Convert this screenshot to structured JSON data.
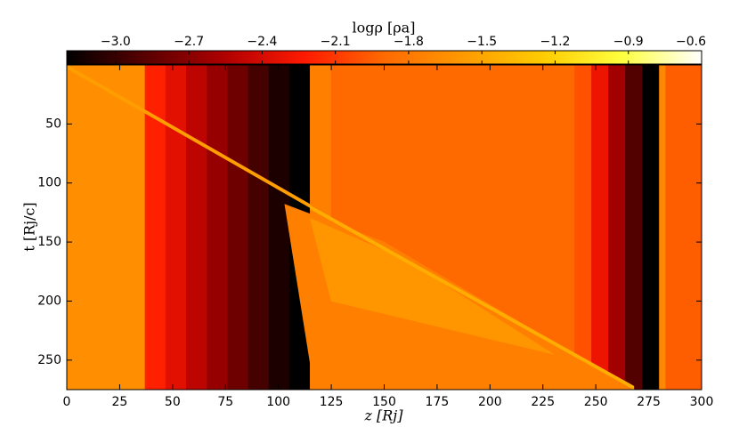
{
  "chart_data": {
    "type": "heatmap",
    "colorbar_label": "logρ [ρa]",
    "xlabel": "z [Rj]",
    "ylabel": "t [Rj/c]",
    "xlim": [
      0,
      300
    ],
    "xticks": [
      0,
      25,
      50,
      75,
      100,
      125,
      150,
      175,
      200,
      225,
      250,
      275,
      300
    ],
    "ylim": [
      0,
      275
    ],
    "yticks": [
      50,
      100,
      150,
      200,
      250
    ],
    "y_inverted": true,
    "clim": [
      -3.2,
      -0.6
    ],
    "cticks": [
      {
        "value": -3.0,
        "label": "−3.0"
      },
      {
        "value": -2.7,
        "label": "−2.7"
      },
      {
        "value": -2.4,
        "label": "−2.4"
      },
      {
        "value": -2.1,
        "label": "−2.1"
      },
      {
        "value": -1.8,
        "label": "−1.8"
      },
      {
        "value": -1.5,
        "label": "−1.5"
      },
      {
        "value": -1.2,
        "label": "−1.2"
      },
      {
        "value": -0.9,
        "label": "−0.9"
      },
      {
        "value": -0.6,
        "label": "−0.6"
      }
    ],
    "colormap": [
      "#000000",
      "#5a0000",
      "#b00000",
      "#ff1a00",
      "#ff6a00",
      "#ff9a00",
      "#ffcc00",
      "#ffff40",
      "#ffffff"
    ],
    "regions": [
      {
        "z": [
          0,
          37,
          37,
          0
        ],
        "t": [
          0,
          0,
          275,
          275
        ],
        "value": -1.65
      },
      {
        "z": [
          37,
          46.75,
          46.75,
          37
        ],
        "t": [
          0,
          0,
          275,
          275
        ],
        "value": -2.2
      },
      {
        "z": [
          46.75,
          56.5,
          56.5,
          46.75
        ],
        "t": [
          0,
          0,
          275,
          275
        ],
        "value": -2.35
      },
      {
        "z": [
          56.5,
          66.25,
          66.25,
          56.5
        ],
        "t": [
          0,
          0,
          275,
          275
        ],
        "value": -2.5
      },
      {
        "z": [
          66.25,
          76,
          76,
          66.25
        ],
        "t": [
          0,
          0,
          275,
          275
        ],
        "value": -2.65
      },
      {
        "z": [
          76,
          85.75,
          85.75,
          76
        ],
        "t": [
          0,
          0,
          275,
          275
        ],
        "value": -2.8
      },
      {
        "z": [
          85.75,
          95.5,
          95.5,
          85.75
        ],
        "t": [
          0,
          0,
          275,
          275
        ],
        "value": -2.95
      },
      {
        "z": [
          95.5,
          105.25,
          105.25,
          95.5
        ],
        "t": [
          0,
          0,
          275,
          275
        ],
        "value": -3.1
      },
      {
        "z": [
          105.25,
          115,
          115,
          105.25
        ],
        "t": [
          0,
          0,
          275,
          275
        ],
        "value": -3.2
      },
      {
        "z": [
          115,
          125,
          125,
          115
        ],
        "t": [
          0,
          0,
          275,
          275
        ],
        "value": -1.75
      },
      {
        "z": [
          125,
          240,
          240,
          125
        ],
        "t": [
          0,
          0,
          275,
          275
        ],
        "value": -1.9
      },
      {
        "z": [
          240,
          248,
          248,
          240
        ],
        "t": [
          0,
          0,
          275,
          275
        ],
        "value": -2.0
      },
      {
        "z": [
          248,
          256,
          256,
          248
        ],
        "t": [
          0,
          0,
          275,
          275
        ],
        "value": -2.3
      },
      {
        "z": [
          256,
          264,
          264,
          256
        ],
        "t": [
          0,
          0,
          275,
          275
        ],
        "value": -2.6
      },
      {
        "z": [
          264,
          272,
          272,
          264
        ],
        "t": [
          0,
          0,
          275,
          275
        ],
        "value": -2.9
      },
      {
        "z": [
          272,
          280,
          280,
          272
        ],
        "t": [
          0,
          0,
          275,
          275
        ],
        "value": -3.2
      },
      {
        "z": [
          280,
          283,
          283,
          280
        ],
        "t": [
          0,
          0,
          275,
          275
        ],
        "value": -1.7
      },
      {
        "z": [
          283,
          300,
          300,
          283
        ],
        "t": [
          0,
          0,
          275,
          275
        ],
        "value": -1.95
      },
      {
        "z": [
          103,
          150,
          268,
          117
        ],
        "t": [
          118,
          150,
          275,
          275
        ],
        "value": -1.75
      },
      {
        "z": [
          115,
          160,
          230,
          125
        ],
        "t": [
          130,
          165,
          245,
          200
        ],
        "value": -1.6
      },
      {
        "z": [
          0,
          115,
          115,
          0
        ],
        "t": [
          0,
          118,
          121,
          3
        ],
        "value": -1.55
      },
      {
        "z": [
          115,
          268,
          268,
          115
        ],
        "t": [
          119,
          272,
          275,
          122
        ],
        "value": -1.45
      }
    ]
  }
}
